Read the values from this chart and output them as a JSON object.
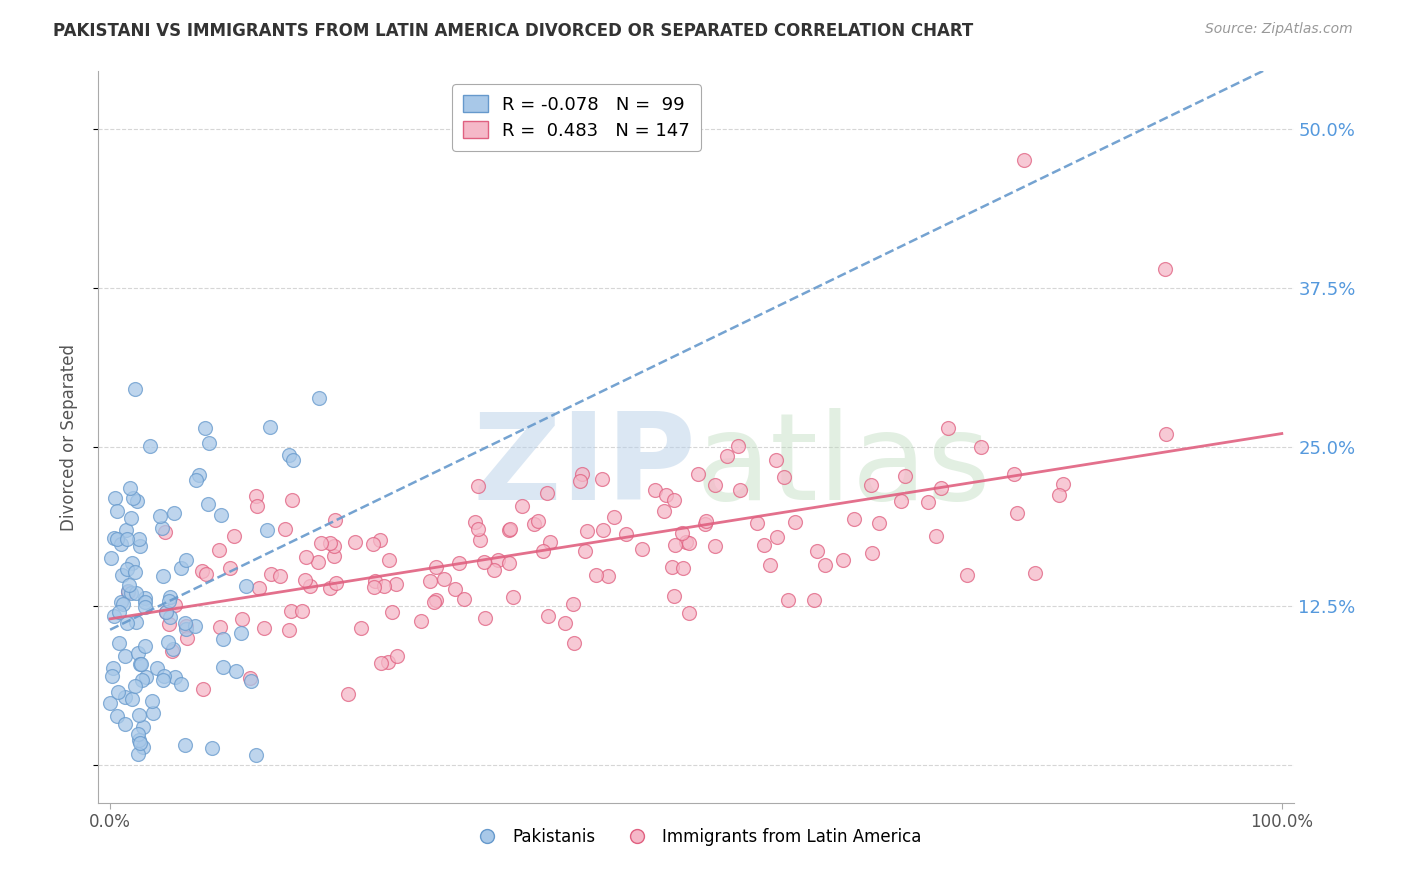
{
  "title": "PAKISTANI VS IMMIGRANTS FROM LATIN AMERICA DIVORCED OR SEPARATED CORRELATION CHART",
  "source": "Source: ZipAtlas.com",
  "ylabel": "Divorced or Separated",
  "xlabel": "",
  "watermark_zip": "ZIP",
  "watermark_atlas": "atlas",
  "xlim": [
    -0.01,
    1.01
  ],
  "ylim": [
    -0.03,
    0.545
  ],
  "yticks": [
    0.0,
    0.125,
    0.25,
    0.375,
    0.5
  ],
  "right_yticks": [
    0.125,
    0.25,
    0.375,
    0.5
  ],
  "right_ytick_labels": [
    "12.5%",
    "25.0%",
    "37.5%",
    "50.0%"
  ],
  "xticks": [
    0.0,
    1.0
  ],
  "xtick_labels": [
    "0.0%",
    "100.0%"
  ],
  "blue_R": -0.078,
  "blue_N": 99,
  "pink_R": 0.483,
  "pink_N": 147,
  "blue_fill": "#a8c8e8",
  "blue_edge": "#6699cc",
  "pink_fill": "#f5b8c8",
  "pink_edge": "#e06080",
  "blue_trend_color": "#6699cc",
  "pink_trend_color": "#e06080",
  "background_color": "#ffffff",
  "grid_color": "#cccccc",
  "title_color": "#333333",
  "right_tick_color": "#5599dd",
  "bottom_label_blue": "Pakistanis",
  "bottom_label_pink": "Immigrants from Latin America",
  "seed_blue": 7,
  "seed_pink": 13
}
